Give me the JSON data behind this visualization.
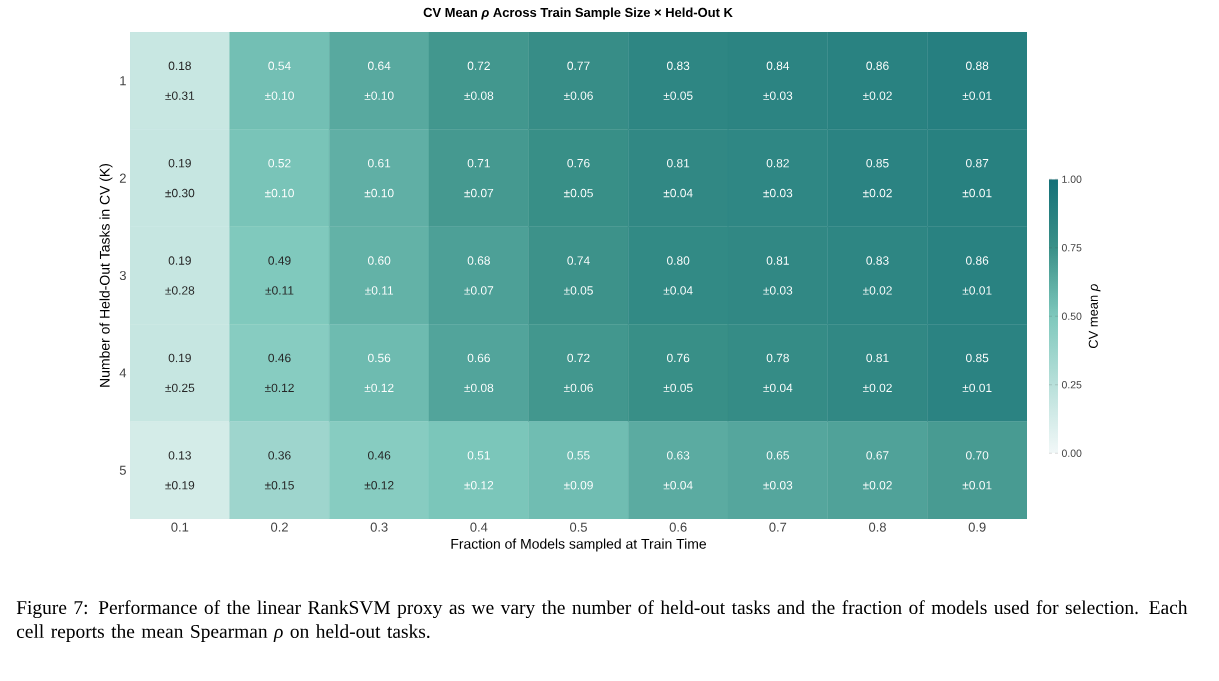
{
  "chart_data": {
    "type": "heatmap",
    "title": "CV Mean *ρ* Across Train Sample Size × Held-Out K",
    "xlabel": "Fraction of Models sampled at Train Time",
    "ylabel": "Number of Held-Out Tasks in CV (K)",
    "clabel": "CV mean *ρ*",
    "categories": [
      "0.1",
      "0.2",
      "0.3",
      "0.4",
      "0.5",
      "0.6",
      "0.7",
      "0.8",
      "0.9"
    ],
    "y_categories": [
      "1",
      "2",
      "3",
      "4",
      "5"
    ],
    "cells": [
      [
        0.18,
        0.54,
        0.64,
        0.72,
        0.77,
        0.83,
        0.84,
        0.86,
        0.88
      ],
      [
        0.19,
        0.52,
        0.61,
        0.71,
        0.76,
        0.81,
        0.82,
        0.85,
        0.87
      ],
      [
        0.19,
        0.49,
        0.6,
        0.68,
        0.74,
        0.8,
        0.81,
        0.83,
        0.86
      ],
      [
        0.19,
        0.46,
        0.56,
        0.66,
        0.72,
        0.76,
        0.78,
        0.81,
        0.85
      ],
      [
        0.13,
        0.36,
        0.46,
        0.51,
        0.55,
        0.63,
        0.65,
        0.67,
        0.7
      ]
    ],
    "cell_labels": [
      [
        "0.18 ±0.31",
        "0.54 ±0.10",
        "0.64 ±0.10",
        "0.72 ±0.08",
        "0.77 ±0.06",
        "0.83 ±0.05",
        "0.84 ±0.03",
        "0.86 ±0.02",
        "0.88 ±0.01"
      ],
      [
        "0.19 ±0.30",
        "0.52 ±0.10",
        "0.61 ±0.10",
        "0.71 ±0.07",
        "0.76 ±0.05",
        "0.81 ±0.04",
        "0.82 ±0.03",
        "0.85 ±0.02",
        "0.87 ±0.01"
      ],
      [
        "0.19 ±0.28",
        "0.49 ±0.11",
        "0.60 ±0.11",
        "0.68 ±0.07",
        "0.74 ±0.05",
        "0.80 ±0.04",
        "0.81 ±0.03",
        "0.83 ±0.02",
        "0.86 ±0.01"
      ],
      [
        "0.19 ±0.25",
        "0.46 ±0.12",
        "0.56 ±0.12",
        "0.66 ±0.08",
        "0.72 ±0.06",
        "0.76 ±0.05",
        "0.78 ±0.04",
        "0.81 ±0.02",
        "0.85 ±0.01"
      ],
      [
        "0.13 ±0.19",
        "0.36 ±0.15",
        "0.46 ±0.12",
        "0.51 ±0.12",
        "0.55 ±0.09",
        "0.63 ±0.04",
        "0.65 ±0.03",
        "0.67 ±0.02",
        "0.70 ±0.01"
      ]
    ],
    "clim": [
      0,
      1
    ],
    "cticks": [
      {
        "value": 0,
        "label": "0.00"
      },
      {
        "value": 0.25,
        "label": "0.25"
      },
      {
        "value": 0.5,
        "label": "0.50"
      },
      {
        "value": 0.75,
        "label": "0.75"
      },
      {
        "value": 1,
        "label": "1.00"
      }
    ],
    "annotations": [
      "Figure 7: Performance of the linear RankSVM proxy as we vary the number of held-out tasks and the fraction of models used for selection. Each cell reports the mean Spearman *ρ* on held-out tasks."
    ]
  }
}
